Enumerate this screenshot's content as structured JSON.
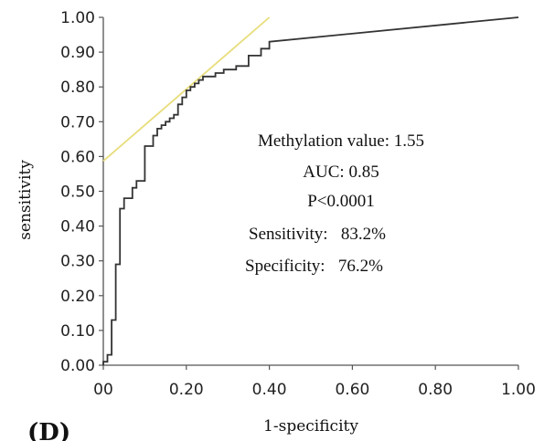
{
  "chart_data": {
    "type": "line",
    "title": "",
    "xlabel": "1-specificity",
    "ylabel": "sensitivity",
    "xlim": [
      0,
      1
    ],
    "ylim": [
      0,
      1
    ],
    "x_ticks": [
      {
        "value": 0.0,
        "label": "00"
      },
      {
        "value": 0.2,
        "label": "0.20"
      },
      {
        "value": 0.4,
        "label": "0.40"
      },
      {
        "value": 0.6,
        "label": "0.60"
      },
      {
        "value": 0.8,
        "label": "0.80"
      },
      {
        "value": 1.0,
        "label": "1.00"
      }
    ],
    "y_ticks": [
      {
        "value": 0.0,
        "label": "0.00"
      },
      {
        "value": 0.1,
        "label": "0.10"
      },
      {
        "value": 0.2,
        "label": "0.20"
      },
      {
        "value": 0.3,
        "label": "0.30"
      },
      {
        "value": 0.4,
        "label": "0.40"
      },
      {
        "value": 0.5,
        "label": "0.50"
      },
      {
        "value": 0.6,
        "label": "0.60"
      },
      {
        "value": 0.7,
        "label": "0.70"
      },
      {
        "value": 0.8,
        "label": "0.80"
      },
      {
        "value": 0.9,
        "label": "0.90"
      },
      {
        "value": 1.0,
        "label": "1.00"
      }
    ],
    "grid": false,
    "series": [
      {
        "color": "#333333",
        "x": [
          0.0,
          0.0,
          0.01,
          0.01,
          0.02,
          0.02,
          0.03,
          0.03,
          0.04,
          0.04,
          0.05,
          0.05,
          0.07,
          0.07,
          0.08,
          0.08,
          0.1,
          0.1,
          0.12,
          0.12,
          0.13,
          0.13,
          0.14,
          0.14,
          0.15,
          0.15,
          0.16,
          0.16,
          0.17,
          0.17,
          0.18,
          0.18,
          0.19,
          0.19,
          0.2,
          0.2,
          0.21,
          0.21,
          0.22,
          0.22,
          0.23,
          0.23,
          0.24,
          0.24,
          0.27,
          0.27,
          0.29,
          0.29,
          0.32,
          0.32,
          0.35,
          0.35,
          0.38,
          0.38,
          0.4,
          0.4,
          1.0
        ],
        "y": [
          0.0,
          0.01,
          0.01,
          0.03,
          0.03,
          0.13,
          0.13,
          0.29,
          0.29,
          0.45,
          0.45,
          0.48,
          0.48,
          0.51,
          0.51,
          0.53,
          0.53,
          0.63,
          0.63,
          0.66,
          0.66,
          0.68,
          0.68,
          0.69,
          0.69,
          0.7,
          0.7,
          0.71,
          0.71,
          0.72,
          0.72,
          0.75,
          0.75,
          0.77,
          0.77,
          0.79,
          0.79,
          0.8,
          0.8,
          0.81,
          0.81,
          0.82,
          0.82,
          0.83,
          0.83,
          0.84,
          0.84,
          0.85,
          0.85,
          0.86,
          0.86,
          0.89,
          0.89,
          0.91,
          0.91,
          0.93,
          1.0
        ]
      }
    ],
    "reference_line": {
      "color": "#e8dd7a",
      "x": [
        0.0,
        0.4
      ],
      "y": [
        0.587,
        1.0
      ]
    },
    "annotations": [
      "Methylation value: 1.55",
      "AUC: 0.85",
      "P<0.0001",
      "Sensitivity:   83.2%",
      "Specificity:   76.2%"
    ],
    "panel_label": "(D)"
  }
}
